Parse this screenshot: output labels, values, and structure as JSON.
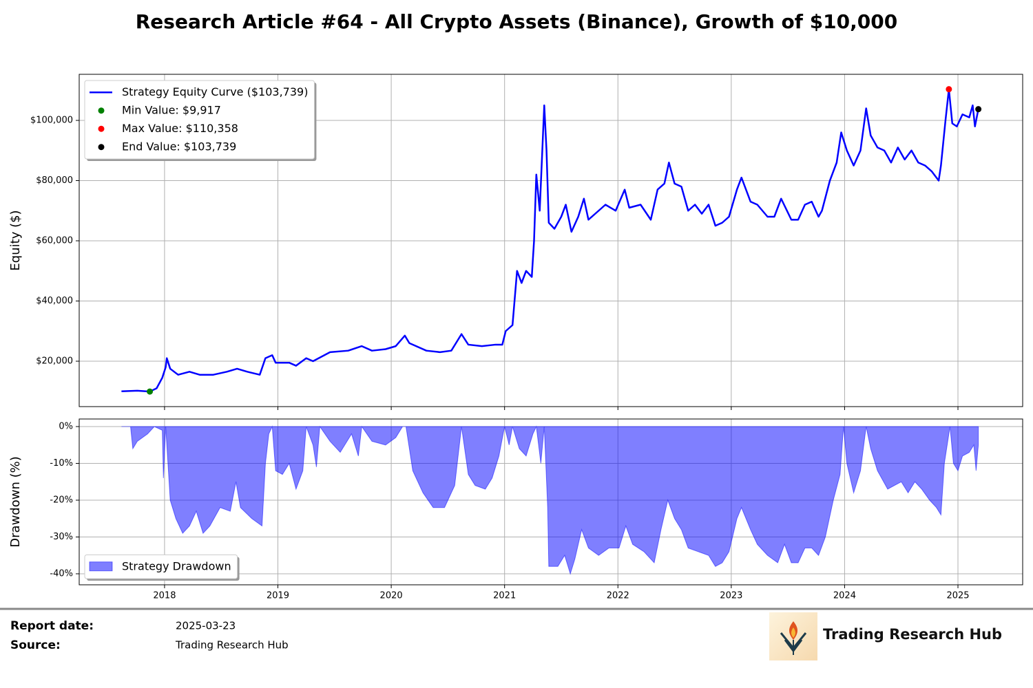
{
  "chart_data": [
    {
      "type": "line",
      "title": "Research Article #64 - All Crypto Assets (Binance), Growth of $10,000",
      "ylabel": "Equity ($)",
      "x": [
        2017.62,
        2017.76,
        2017.87,
        2017.93,
        2017.98,
        2018.01,
        2018.02,
        2018.05,
        2018.12,
        2018.22,
        2018.31,
        2018.43,
        2018.55,
        2018.64,
        2018.73,
        2018.84,
        2018.89,
        2018.95,
        2018.98,
        2019.1,
        2019.16,
        2019.25,
        2019.31,
        2019.46,
        2019.62,
        2019.74,
        2019.83,
        2019.95,
        2020.04,
        2020.12,
        2020.16,
        2020.31,
        2020.43,
        2020.53,
        2020.62,
        2020.68,
        2020.8,
        2020.92,
        2020.98,
        2021.01,
        2021.07,
        2021.11,
        2021.15,
        2021.19,
        2021.24,
        2021.26,
        2021.28,
        2021.31,
        2021.35,
        2021.37,
        2021.39,
        2021.44,
        2021.5,
        2021.54,
        2021.59,
        2021.65,
        2021.7,
        2021.74,
        2021.83,
        2021.89,
        2021.98,
        2022.06,
        2022.1,
        2022.2,
        2022.29,
        2022.35,
        2022.41,
        2022.45,
        2022.5,
        2022.56,
        2022.62,
        2022.68,
        2022.74,
        2022.8,
        2022.86,
        2022.92,
        2022.98,
        2023.05,
        2023.09,
        2023.17,
        2023.23,
        2023.32,
        2023.38,
        2023.44,
        2023.53,
        2023.59,
        2023.65,
        2023.71,
        2023.77,
        2023.8,
        2023.87,
        2023.93,
        2023.97,
        2024.02,
        2024.08,
        2024.14,
        2024.19,
        2024.23,
        2024.29,
        2024.35,
        2024.41,
        2024.47,
        2024.53,
        2024.59,
        2024.65,
        2024.71,
        2024.77,
        2024.83,
        2024.85,
        2024.89,
        2024.92,
        2024.95,
        2024.99,
        2025.04,
        2025.1,
        2025.13,
        2025.15,
        2025.18
      ],
      "series": [
        {
          "name": "Strategy Equity Curve ($103,739)",
          "color": "#0000ff",
          "values": [
            10000,
            10200,
            9917,
            11000,
            14500,
            18000,
            21000,
            17500,
            15500,
            16500,
            15500,
            15500,
            16500,
            17500,
            16500,
            15500,
            21000,
            22000,
            19500,
            19500,
            18500,
            21000,
            20000,
            23000,
            23500,
            25000,
            23500,
            24000,
            25000,
            28500,
            26000,
            23500,
            23000,
            23500,
            29000,
            25500,
            25000,
            25500,
            25500,
            30000,
            32000,
            50000,
            46000,
            50000,
            48000,
            60000,
            82000,
            70000,
            105000,
            90000,
            66000,
            64000,
            68000,
            72000,
            63000,
            68000,
            74000,
            67000,
            70000,
            72000,
            70000,
            77000,
            71000,
            72000,
            67000,
            77000,
            79000,
            86000,
            79000,
            78000,
            70000,
            72000,
            69000,
            72000,
            65000,
            66000,
            68000,
            77000,
            81000,
            73000,
            72000,
            68000,
            68000,
            74000,
            67000,
            67000,
            72000,
            73000,
            68000,
            70000,
            80000,
            86000,
            96000,
            90000,
            85000,
            90000,
            104000,
            95000,
            91000,
            90000,
            86000,
            91000,
            87000,
            90000,
            86000,
            85000,
            83000,
            80000,
            85000,
            100000,
            110358,
            99000,
            98000,
            102000,
            101000,
            105000,
            98000,
            103739
          ]
        }
      ],
      "points": [
        {
          "name": "Min Value: $9,917",
          "color": "#008000",
          "x": 2017.87,
          "y": 9917
        },
        {
          "name": "Max Value: $110,358",
          "color": "#ff0000",
          "x": 2024.92,
          "y": 110358
        },
        {
          "name": "End Value: $103,739",
          "color": "#000000",
          "x": 2025.18,
          "y": 103739
        }
      ],
      "xlim": [
        2017.247,
        2025.571
      ],
      "ylim": [
        4914,
        115314
      ],
      "xticks": [
        2018,
        2019,
        2020,
        2021,
        2022,
        2023,
        2024,
        2025
      ],
      "yticks": [
        {
          "value": 20000,
          "label": "$20,000"
        },
        {
          "value": 40000,
          "label": "$40,000"
        },
        {
          "value": 60000,
          "label": "$60,000"
        },
        {
          "value": 80000,
          "label": "$80,000"
        },
        {
          "value": 100000,
          "label": "$100,000"
        }
      ],
      "grid": true,
      "legend": "upper left"
    },
    {
      "type": "area",
      "ylabel": "Drawdown (%)",
      "x": [
        2017.62,
        2017.7,
        2017.72,
        2017.76,
        2017.85,
        2017.91,
        2017.98,
        2017.99,
        2018.01,
        2018.04,
        2018.05,
        2018.1,
        2018.16,
        2018.22,
        2018.28,
        2018.34,
        2018.4,
        2018.49,
        2018.58,
        2018.63,
        2018.67,
        2018.77,
        2018.86,
        2018.89,
        2018.92,
        2018.95,
        2018.98,
        2019.04,
        2019.1,
        2019.16,
        2019.22,
        2019.25,
        2019.31,
        2019.34,
        2019.37,
        2019.46,
        2019.55,
        2019.65,
        2019.71,
        2019.74,
        2019.83,
        2019.95,
        2020.04,
        2020.1,
        2020.13,
        2020.19,
        2020.28,
        2020.37,
        2020.47,
        2020.56,
        2020.62,
        2020.68,
        2020.74,
        2020.83,
        2020.89,
        2020.95,
        2021.0,
        2021.04,
        2021.07,
        2021.13,
        2021.19,
        2021.25,
        2021.28,
        2021.32,
        2021.35,
        2021.38,
        2021.39,
        2021.47,
        2021.53,
        2021.58,
        2021.62,
        2021.68,
        2021.74,
        2021.83,
        2021.92,
        2022.01,
        2022.07,
        2022.13,
        2022.23,
        2022.32,
        2022.38,
        2022.44,
        2022.5,
        2022.56,
        2022.62,
        2022.71,
        2022.8,
        2022.86,
        2022.92,
        2022.98,
        2023.05,
        2023.09,
        2023.17,
        2023.23,
        2023.32,
        2023.41,
        2023.47,
        2023.53,
        2023.59,
        2023.65,
        2023.71,
        2023.77,
        2023.83,
        2023.9,
        2023.96,
        2023.99,
        2024.02,
        2024.08,
        2024.14,
        2024.19,
        2024.23,
        2024.29,
        2024.38,
        2024.44,
        2024.5,
        2024.56,
        2024.62,
        2024.68,
        2024.75,
        2024.81,
        2024.85,
        2024.88,
        2024.93,
        2024.96,
        2025.0,
        2025.04,
        2025.1,
        2025.14,
        2025.16,
        2025.18
      ],
      "series": [
        {
          "name": "Strategy Drawdown",
          "color": "#0000ff",
          "values": [
            0,
            0,
            -6,
            -4,
            -2,
            0,
            -1,
            -14,
            0,
            -15,
            -20,
            -25,
            -29,
            -27,
            -23,
            -29,
            -27,
            -22,
            -23,
            -15,
            -22,
            -25,
            -27,
            -10,
            -2,
            0,
            -12,
            -13,
            -10,
            -17,
            -12,
            0,
            -5,
            -11,
            0,
            -4,
            -7,
            -2,
            -8,
            0,
            -4,
            -5,
            -3,
            0,
            0,
            -12,
            -18,
            -22,
            -22,
            -16,
            0,
            -13,
            -16,
            -17,
            -14,
            -8,
            0,
            -5,
            0,
            -6,
            -8,
            -2,
            0,
            -10,
            0,
            -22,
            -38,
            -38,
            -35,
            -40,
            -36,
            -28,
            -33,
            -35,
            -33,
            -33,
            -27,
            -32,
            -34,
            -37,
            -28,
            -20,
            -25,
            -28,
            -33,
            -34,
            -35,
            -38,
            -37,
            -34,
            -25,
            -22,
            -28,
            -32,
            -35,
            -37,
            -32,
            -37,
            -37,
            -33,
            -33,
            -35,
            -30,
            -20,
            -13,
            0,
            -10,
            -18,
            -12,
            0,
            -6,
            -12,
            -17,
            -16,
            -15,
            -18,
            -15,
            -17,
            -20,
            -22,
            -24,
            -10,
            0,
            -10,
            -12,
            -8,
            -7,
            -5,
            -12,
            -5
          ]
        }
      ],
      "xlim": [
        2017.247,
        2025.571
      ],
      "ylim": [
        -42.99,
        2.06
      ],
      "xticks": [
        2018,
        2019,
        2020,
        2021,
        2022,
        2023,
        2024,
        2025
      ],
      "yticks": [
        {
          "value": -40,
          "label": "-40%"
        },
        {
          "value": -30,
          "label": "-30%"
        },
        {
          "value": -20,
          "label": "-20%"
        },
        {
          "value": -10,
          "label": "-10%"
        },
        {
          "value": 0,
          "label": "0%"
        }
      ],
      "grid": true,
      "legend": "lower left"
    }
  ],
  "footer": {
    "report_date_label": "Report date:",
    "report_date": "2025-03-23",
    "source_label": "Source:",
    "source": "Trading Research Hub",
    "brand": "Trading Research Hub"
  }
}
